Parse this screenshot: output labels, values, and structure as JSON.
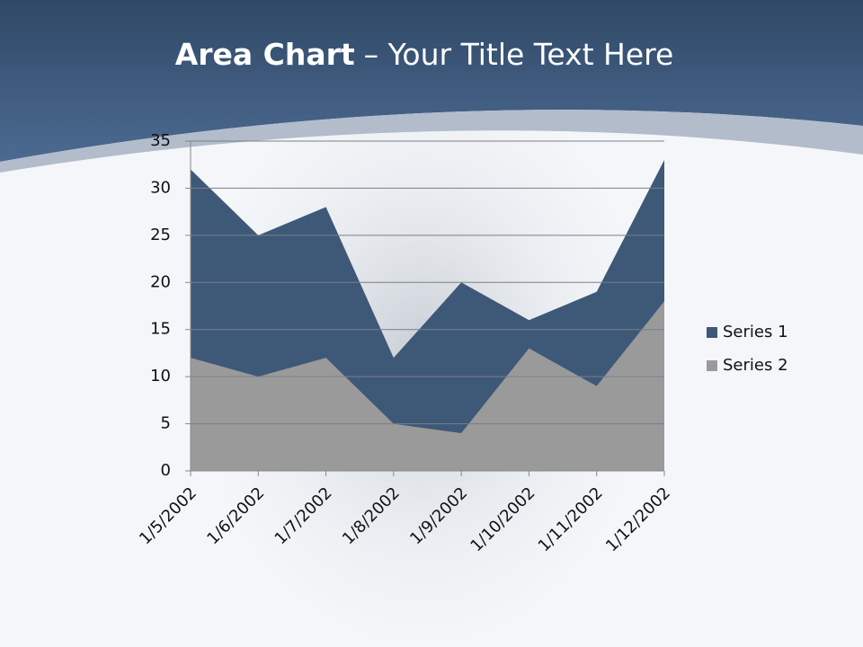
{
  "chart_data": {
    "type": "area",
    "title": [
      "Area Chart",
      "– Your Title Text Here"
    ],
    "categories": [
      "1/5/2002",
      "1/6/2002",
      "1/7/2002",
      "1/8/2002",
      "1/9/2002",
      "1/10/2002",
      "1/11/2002",
      "1/12/2002"
    ],
    "series": [
      {
        "name": "Series 1",
        "color": "#3e5878",
        "values": [
          32,
          25,
          28,
          12,
          20,
          16,
          19,
          33
        ]
      },
      {
        "name": "Series 2",
        "color": "#9a9a9a",
        "values": [
          12,
          10,
          12,
          5,
          4,
          13,
          9,
          18
        ]
      }
    ],
    "ylim": [
      0,
      35
    ],
    "yticks": [
      0,
      5,
      10,
      15,
      20,
      25,
      30,
      35
    ],
    "grid": true,
    "legend": "right"
  }
}
